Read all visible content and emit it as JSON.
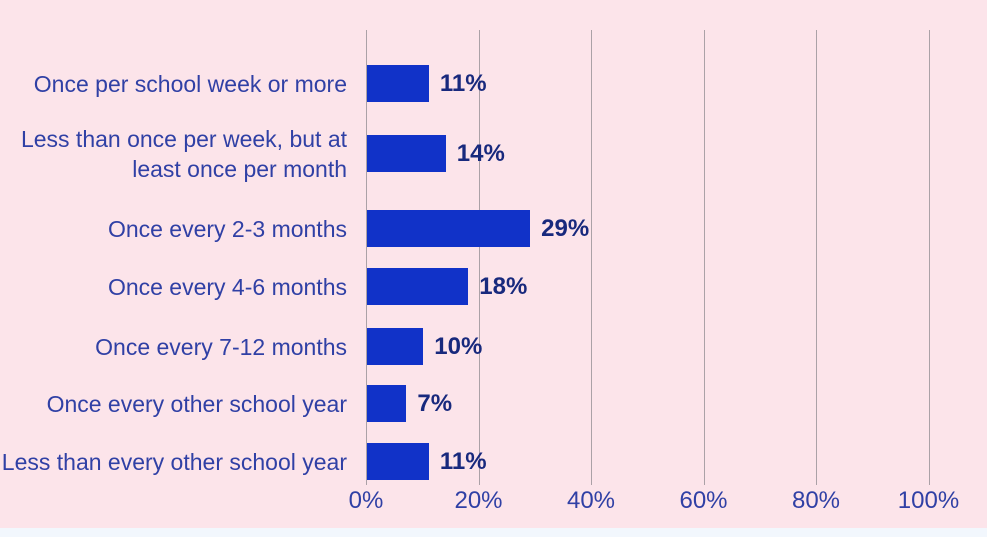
{
  "chart_data": {
    "type": "bar",
    "orientation": "horizontal",
    "title": "",
    "categories": [
      "Once per school week or more",
      "Less than once per week, but at\nleast once per month",
      "Once every 2-3 months",
      "Once every 4-6 months",
      "Once every 7-12 months",
      "Once every other school year",
      "Less than every other school year"
    ],
    "values": [
      11,
      14,
      29,
      18,
      10,
      7,
      11
    ],
    "value_labels": [
      "11%",
      "14%",
      "29%",
      "18%",
      "10%",
      "7%",
      "11%"
    ],
    "x_ticks": [
      "0%",
      "20%",
      "40%",
      "60%",
      "80%",
      "100%"
    ],
    "x_tick_values": [
      0,
      20,
      40,
      60,
      80,
      100
    ],
    "xlim": [
      0,
      100
    ],
    "grid": true,
    "legend": false,
    "colors": {
      "background": "#fce4ea",
      "bar": "#1132c8",
      "category_label": "#3040a5",
      "value_label": "#18297d",
      "tick_label": "#3040a5",
      "gridline": "#aba1a7",
      "footer_strip": "#f2f7fd"
    }
  }
}
